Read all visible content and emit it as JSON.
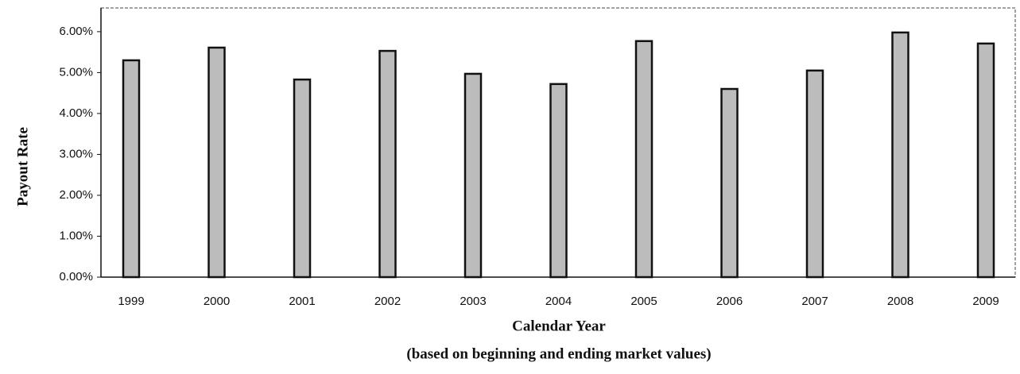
{
  "chart_data": {
    "type": "bar",
    "y_label": "Payout Rate",
    "x_label": "Calendar Year",
    "subtitle": "(based on beginning and ending market values)",
    "categories": [
      "1999",
      "2000",
      "2001",
      "2002",
      "2003",
      "2004",
      "2005",
      "2006",
      "2007",
      "2008",
      "2009"
    ],
    "values": [
      5.3,
      5.61,
      4.83,
      5.53,
      4.97,
      4.72,
      5.77,
      4.6,
      5.05,
      5.98,
      5.71
    ],
    "color": "#bcbcbc",
    "ylim": [
      0,
      6.58
    ],
    "yticks": [
      {
        "value": 0,
        "label": "0.00%"
      },
      {
        "value": 1,
        "label": "1.00%"
      },
      {
        "value": 2,
        "label": "2.00%"
      },
      {
        "value": 3,
        "label": "3.00%"
      },
      {
        "value": 4,
        "label": "4.00%"
      },
      {
        "value": 5,
        "label": "5.00%"
      },
      {
        "value": 6,
        "label": "6.00%"
      }
    ]
  }
}
